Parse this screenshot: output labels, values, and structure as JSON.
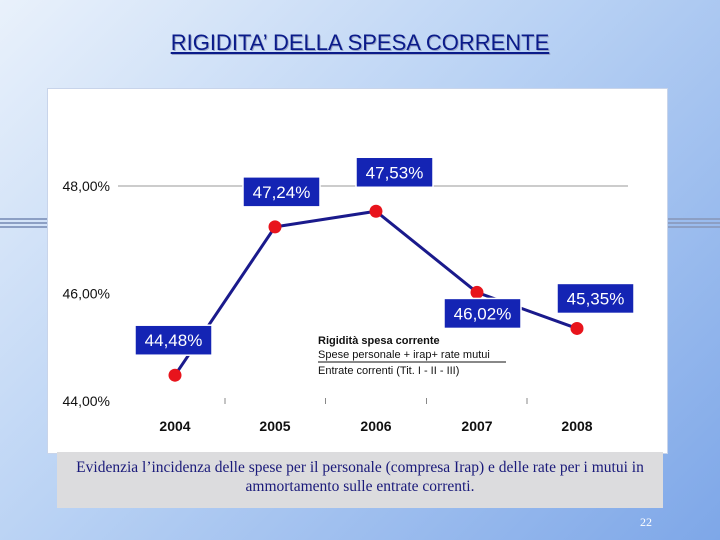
{
  "slide": {
    "title": "RIGIDITA’ DELLA SPESA CORRENTE",
    "caption": "Evidenzia l’incidenza delle spese per il personale (compresa Irap) e delle rate per i mutui in ammortamento sulle entrate correnti.",
    "page_number": "22"
  },
  "colors": {
    "title": "#0a1b8a",
    "line": "#1a1a8c",
    "marker": "#e8141c",
    "label_box": "#1424b4"
  },
  "chart_data": {
    "type": "line",
    "title": "",
    "categories": [
      "2004",
      "2005",
      "2006",
      "2007",
      "2008"
    ],
    "series": [
      {
        "name": "Rigidità spesa corrente",
        "values": [
          44.48,
          47.24,
          47.53,
          46.02,
          45.35
        ],
        "labels": [
          "44,48%",
          "47,24%",
          "47,53%",
          "46,02%",
          "45,35%"
        ]
      }
    ],
    "yticks": [
      44,
      46,
      48
    ],
    "ytick_labels": [
      "44,00%",
      "46,00%",
      "48,00%"
    ],
    "ylim": [
      44,
      48
    ],
    "grid": "horizontal line at 48,00%",
    "legend": {
      "position": "center-right",
      "lines": [
        "Rigidità spesa corrente",
        "Spese personale + irap+ rate mutui",
        "Entrate correnti (Tit. I - II - III)"
      ]
    }
  }
}
